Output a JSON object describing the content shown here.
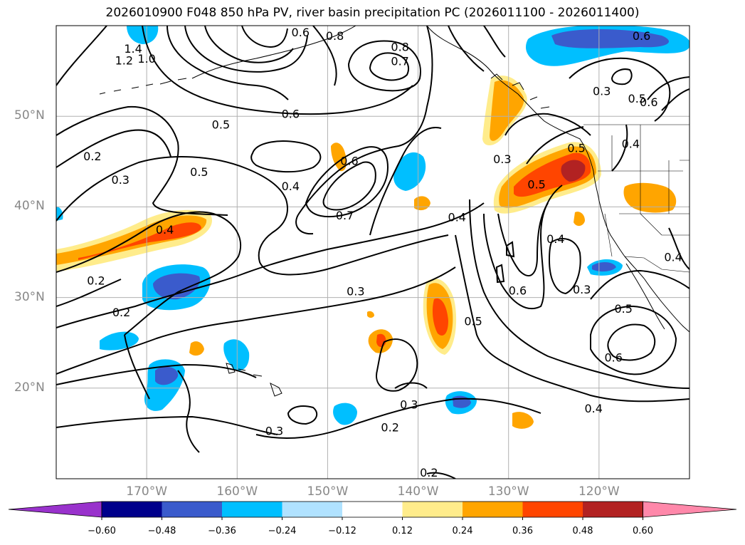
{
  "title": "2026010900 F048 850 hPa PV, river basin precipitation PC (2026011100 - 2026011400)",
  "map": {
    "lon_range": [
      -180,
      -110
    ],
    "lat_range": [
      10,
      60
    ],
    "lat_labels": [
      {
        "lat": 50,
        "label": "50°N"
      },
      {
        "lat": 40,
        "label": "40°N"
      },
      {
        "lat": 30,
        "label": "30°N"
      },
      {
        "lat": 20,
        "label": "20°N"
      }
    ],
    "lon_labels": [
      {
        "lon": -170,
        "label": "170°W"
      },
      {
        "lon": -160,
        "label": "160°W"
      },
      {
        "lon": -150,
        "label": "150°W"
      },
      {
        "lon": -140,
        "label": "140°W"
      },
      {
        "lon": -130,
        "label": "130°W"
      },
      {
        "lon": -120,
        "label": "120°W"
      }
    ],
    "contour_labels": [
      {
        "text": "1.4",
        "lon": -171.5,
        "lat": 57.5
      },
      {
        "text": "1.2",
        "lon": -172.5,
        "lat": 56.2
      },
      {
        "text": "1.0",
        "lon": -170.0,
        "lat": 56.4
      },
      {
        "text": "0.8",
        "lon": -149.2,
        "lat": 58.9
      },
      {
        "text": "0.8",
        "lon": -142.0,
        "lat": 57.7
      },
      {
        "text": "0.7",
        "lon": -142.0,
        "lat": 56.1
      },
      {
        "text": "0.6",
        "lon": -154.1,
        "lat": 50.3
      },
      {
        "text": "0.5",
        "lon": -161.8,
        "lat": 49.1
      },
      {
        "text": "0.2",
        "lon": -176.0,
        "lat": 45.6
      },
      {
        "text": "0.3",
        "lon": -172.9,
        "lat": 43.0
      },
      {
        "text": "0.5",
        "lon": -164.2,
        "lat": 43.9
      },
      {
        "text": "0.4",
        "lon": -154.1,
        "lat": 42.3
      },
      {
        "text": "0.6",
        "lon": -147.6,
        "lat": 45.1
      },
      {
        "text": "0.7",
        "lon": -148.1,
        "lat": 39.1
      },
      {
        "text": "0.4",
        "lon": -168.0,
        "lat": 37.5
      },
      {
        "text": "0.2",
        "lon": -175.6,
        "lat": 31.9
      },
      {
        "text": "0.3",
        "lon": -146.9,
        "lat": 30.7
      },
      {
        "text": "0.2",
        "lon": -172.8,
        "lat": 28.4
      },
      {
        "text": "0.4",
        "lon": -135.7,
        "lat": 38.9
      },
      {
        "text": "0.3",
        "lon": -130.7,
        "lat": 45.3
      },
      {
        "text": "0.5",
        "lon": -126.9,
        "lat": 42.5
      },
      {
        "text": "0.5",
        "lon": -122.5,
        "lat": 46.5
      },
      {
        "text": "0.4",
        "lon": -124.8,
        "lat": 36.5
      },
      {
        "text": "0.6",
        "lon": -129.0,
        "lat": 30.8
      },
      {
        "text": "0.3",
        "lon": -121.9,
        "lat": 30.9
      },
      {
        "text": "0.5",
        "lon": -133.9,
        "lat": 27.4
      },
      {
        "text": "0.6",
        "lon": -118.4,
        "lat": 23.4
      },
      {
        "text": "0.4",
        "lon": -120.6,
        "lat": 17.8
      },
      {
        "text": "0.3",
        "lon": -141.0,
        "lat": 18.2
      },
      {
        "text": "0.2",
        "lon": -143.1,
        "lat": 15.7
      },
      {
        "text": "0.3",
        "lon": -155.9,
        "lat": 15.3
      },
      {
        "text": "0.2",
        "lon": -138.8,
        "lat": 10.7
      },
      {
        "text": "0.5",
        "lon": -115.8,
        "lat": 52.0
      },
      {
        "text": "0.6",
        "lon": -114.5,
        "lat": 51.6
      },
      {
        "text": "0.3",
        "lon": -119.7,
        "lat": 52.8
      },
      {
        "text": "0.4",
        "lon": -111.8,
        "lat": 34.5
      },
      {
        "text": "0.5",
        "lon": -117.3,
        "lat": 28.8
      },
      {
        "text": "0.4",
        "lon": -116.5,
        "lat": 47.0
      },
      {
        "text": "0.6",
        "lon": -115.3,
        "lat": 58.9
      },
      {
        "text": "0.6",
        "lon": -153.0,
        "lat": 59.3
      }
    ]
  },
  "colorbar": {
    "colors": [
      "#9932CC",
      "#00008B",
      "#3A5BCC",
      "#00BFFF",
      "#B0E2FF",
      "#FFFFFF",
      "#FFEC8B",
      "#FFA500",
      "#FF4500",
      "#B22222",
      "#FF88AA"
    ],
    "ticks": [
      "−0.60",
      "−0.48",
      "−0.36",
      "−0.24",
      "−0.12",
      "0.12",
      "0.24",
      "0.36",
      "0.48",
      "0.60"
    ]
  }
}
